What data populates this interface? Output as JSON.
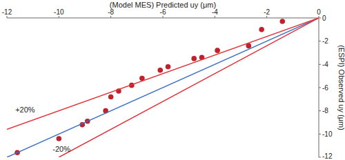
{
  "chart_data": {
    "type": "scatter",
    "x_label": "(Model MES) Predicted uy (μm)",
    "y_label": "(ESPI) Observed uy (μm)",
    "xlim": [
      -12,
      0
    ],
    "xticks": [
      -12,
      -10,
      -8,
      -6,
      -4,
      -2,
      0
    ],
    "ylim": [
      -12,
      0
    ],
    "yticks": [
      0,
      -2,
      -4,
      -6,
      -8,
      -10,
      -12
    ],
    "grid": false,
    "series": [
      {
        "type": "scatter",
        "marker": "circle",
        "color": "#c0222b",
        "x": [
          -1.4,
          -2.2,
          -2.7,
          -3.9,
          -4.5,
          -4.8,
          -5.8,
          -6.1,
          -6.8,
          -7.2,
          -7.7,
          -8.0,
          -8.2,
          -8.9,
          -9.1,
          -10.0,
          -11.6
        ],
        "values": [
          -0.3,
          -1.0,
          -2.4,
          -2.8,
          -3.4,
          -3.5,
          -4.2,
          -4.5,
          -5.2,
          -5.8,
          -6.3,
          -6.8,
          -8.0,
          -8.9,
          -9.2,
          -10.4,
          -11.6
        ]
      },
      {
        "type": "line",
        "line_style": "solid",
        "color": "#3b6fc4",
        "x": [
          -12,
          0
        ],
        "values": [
          -12,
          0
        ]
      },
      {
        "type": "line",
        "line_style": "solid",
        "color": "#e0353a",
        "x": [
          -12,
          0
        ],
        "values": [
          -9.6,
          0
        ]
      },
      {
        "type": "line",
        "line_style": "solid",
        "color": "#e0353a",
        "x": [
          -10,
          0
        ],
        "values": [
          -12,
          0
        ]
      }
    ],
    "annotations": [
      {
        "text": "+20%",
        "x": -11.3,
        "y": -7.9
      },
      {
        "text": "-20%",
        "x": -9.9,
        "y": -11.3
      }
    ]
  }
}
